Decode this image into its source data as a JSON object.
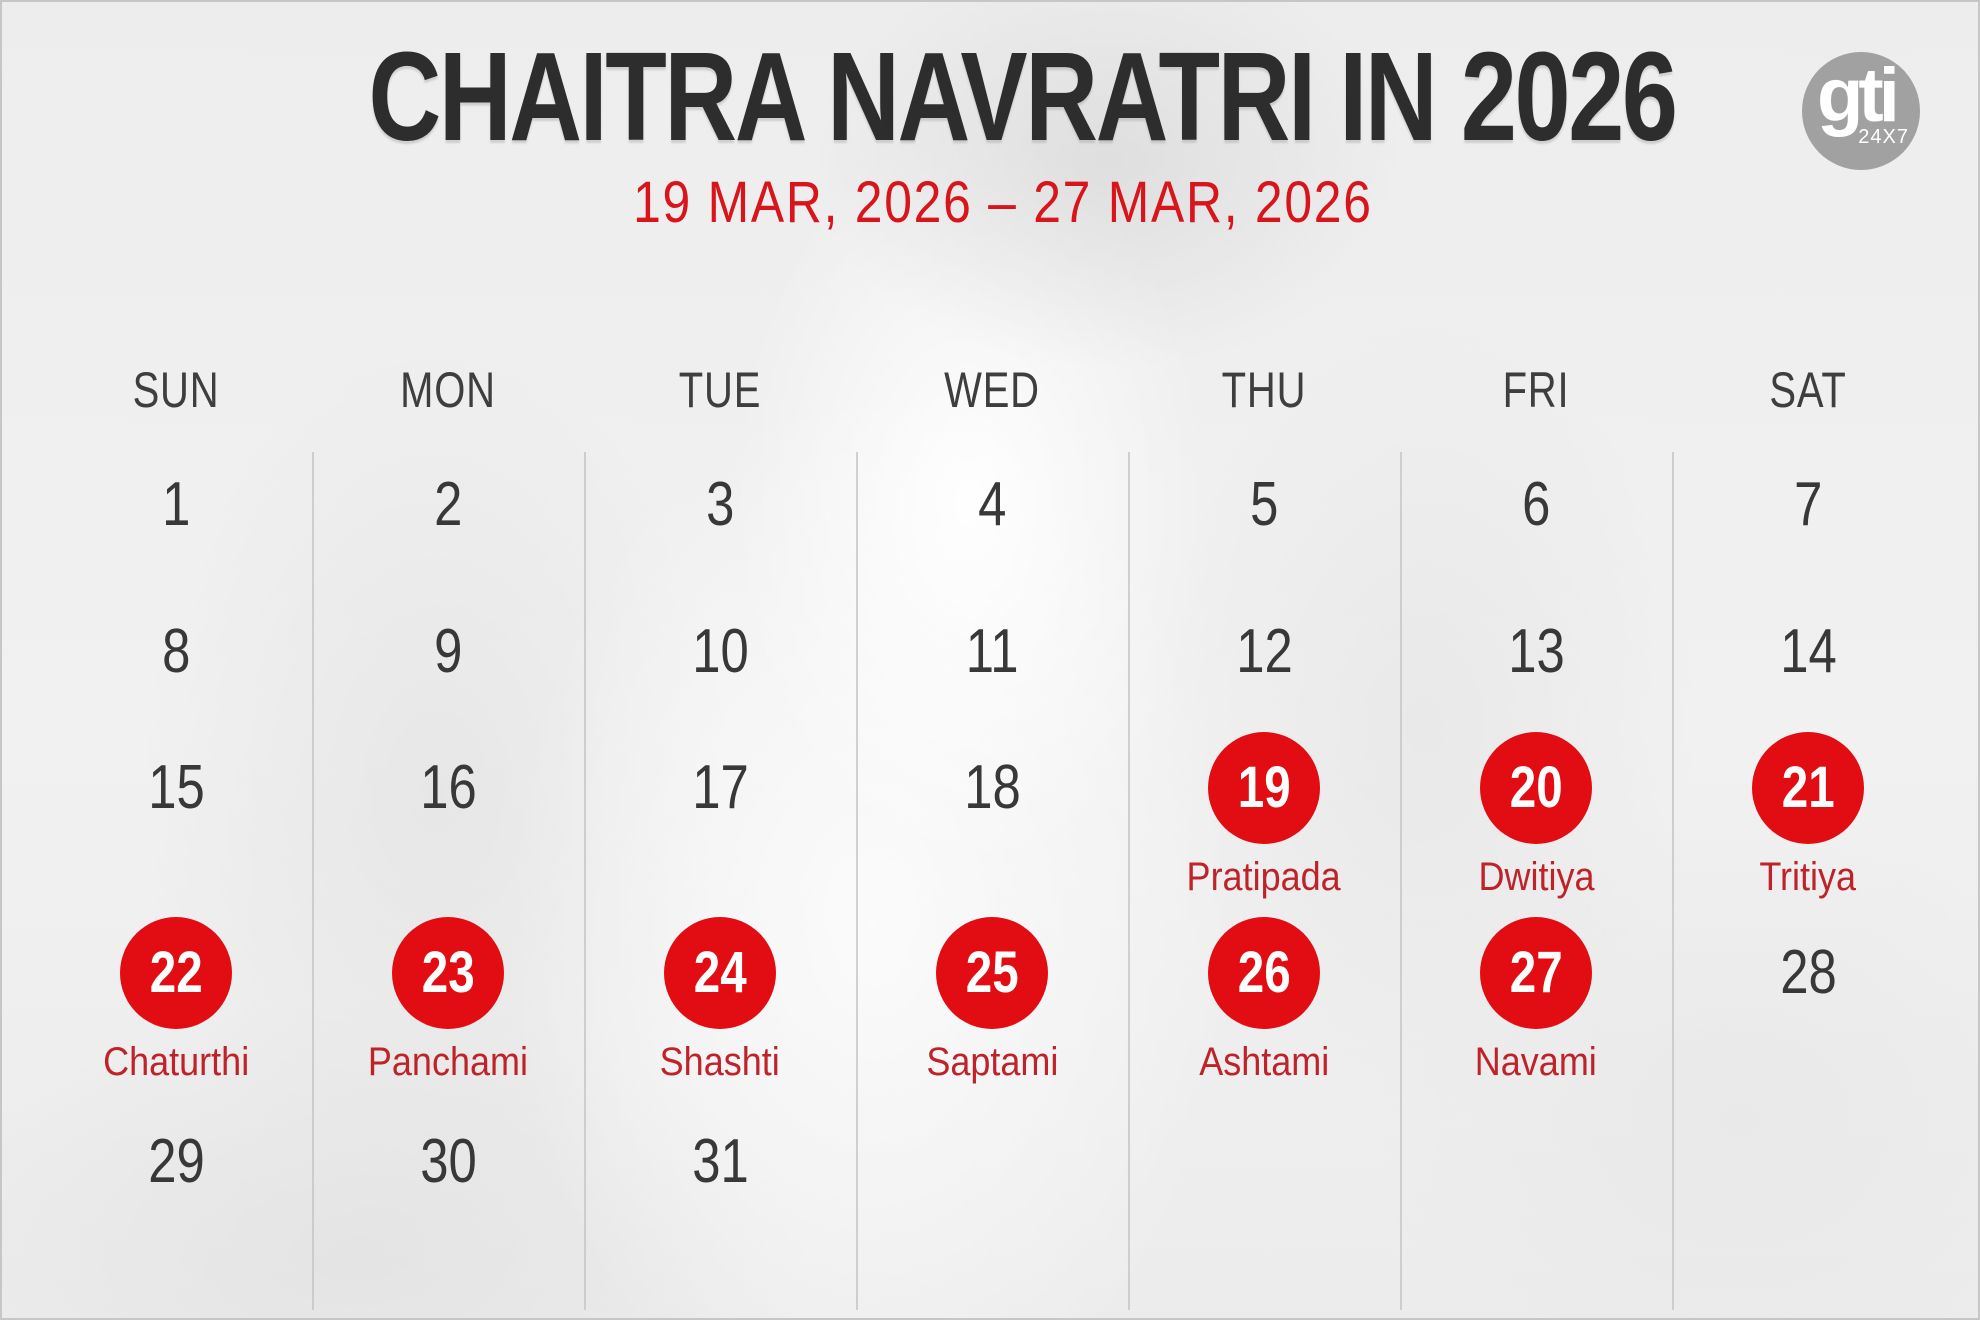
{
  "page": {
    "title": "CHAITRA NAVRATRI IN 2026",
    "date_range": "19 MAR, 2026 – 27 MAR, 2026"
  },
  "logo": {
    "name": "gti",
    "tagline": "24X7"
  },
  "colors": {
    "highlight_red": "#e10d12",
    "subtitle_red": "#d9151c",
    "tithi_red": "#bf2329",
    "title_dark": "#2d2d2d",
    "header_dark": "#3e3e3e",
    "number_dark": "#383838",
    "logo_gray": "#a1a1a1",
    "divider_gray": "#c6c6c6",
    "background": "#efefef"
  },
  "calendar": {
    "day_headers": [
      "SUN",
      "MON",
      "TUE",
      "WED",
      "THU",
      "FRI",
      "SAT"
    ],
    "weeks": [
      [
        {
          "day": "1"
        },
        {
          "day": "2"
        },
        {
          "day": "3"
        },
        {
          "day": "4"
        },
        {
          "day": "5"
        },
        {
          "day": "6"
        },
        {
          "day": "7"
        }
      ],
      [
        {
          "day": "8"
        },
        {
          "day": "9"
        },
        {
          "day": "10"
        },
        {
          "day": "11"
        },
        {
          "day": "12"
        },
        {
          "day": "13"
        },
        {
          "day": "14"
        }
      ],
      [
        {
          "day": "15"
        },
        {
          "day": "16"
        },
        {
          "day": "17"
        },
        {
          "day": "18"
        },
        {
          "day": "19",
          "highlighted": true,
          "tithi": "Pratipada"
        },
        {
          "day": "20",
          "highlighted": true,
          "tithi": "Dwitiya"
        },
        {
          "day": "21",
          "highlighted": true,
          "tithi": "Tritiya"
        }
      ],
      [
        {
          "day": "22",
          "highlighted": true,
          "tithi": "Chaturthi"
        },
        {
          "day": "23",
          "highlighted": true,
          "tithi": "Panchami"
        },
        {
          "day": "24",
          "highlighted": true,
          "tithi": "Shashti"
        },
        {
          "day": "25",
          "highlighted": true,
          "tithi": "Saptami"
        },
        {
          "day": "26",
          "highlighted": true,
          "tithi": "Ashtami"
        },
        {
          "day": "27",
          "highlighted": true,
          "tithi": "Navami"
        },
        {
          "day": "28"
        }
      ],
      [
        {
          "day": "29"
        },
        {
          "day": "30"
        },
        {
          "day": "31"
        },
        {},
        {},
        {},
        {}
      ]
    ]
  }
}
